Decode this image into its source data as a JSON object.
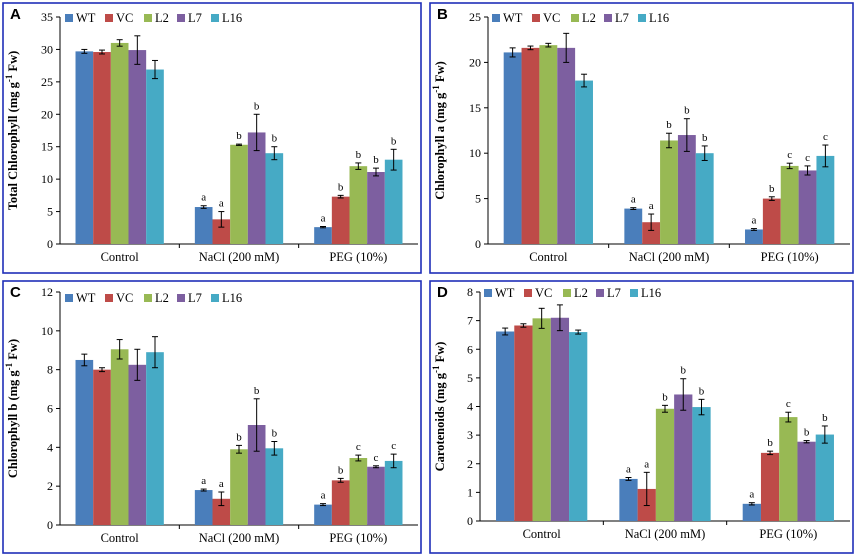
{
  "chart_data": [
    {
      "panel": "A",
      "type": "bar",
      "ylabel": "Total Chlorophyll (mg g-1 Fw)",
      "ylabel_main": "Total Chlorophyll (mg g",
      "ylabel_sup": "-1",
      "ylabel_tail": " Fw)",
      "ylim": [
        0,
        35
      ],
      "yticks": [
        0,
        5,
        10,
        15,
        20,
        25,
        30,
        35
      ],
      "categories": [
        "Control",
        "NaCl (200 mM)",
        "PEG (10%)"
      ],
      "series": [
        {
          "name": "WT",
          "values": [
            29.7,
            5.7,
            2.6
          ],
          "errors": [
            0.3,
            0.2,
            0.1
          ],
          "labels": [
            "",
            "a",
            "a"
          ]
        },
        {
          "name": "VC",
          "values": [
            29.6,
            3.8,
            7.3
          ],
          "errors": [
            0.3,
            1.2,
            0.2
          ],
          "labels": [
            "",
            "a",
            "b"
          ]
        },
        {
          "name": "L2",
          "values": [
            31.0,
            15.3,
            12.0
          ],
          "errors": [
            0.5,
            0.1,
            0.5
          ],
          "labels": [
            "",
            "b",
            "b"
          ]
        },
        {
          "name": "L7",
          "values": [
            29.9,
            17.2,
            11.1
          ],
          "errors": [
            2.2,
            2.8,
            0.6
          ],
          "labels": [
            "",
            "b",
            "b"
          ]
        },
        {
          "name": "L16",
          "values": [
            26.9,
            14.0,
            13.0
          ],
          "errors": [
            1.4,
            1.0,
            1.6
          ],
          "labels": [
            "",
            "b",
            "b"
          ]
        }
      ]
    },
    {
      "panel": "B",
      "type": "bar",
      "ylabel": "Chlorophyll a (mg g-1 Fw)",
      "ylabel_main": "Chlorophyll a (mg g",
      "ylabel_sup": "-1",
      "ylabel_tail": " Fw)",
      "ylim": [
        0,
        25
      ],
      "yticks": [
        0,
        5,
        10,
        15,
        20,
        25
      ],
      "categories": [
        "Control",
        "NaCl (200 mM)",
        "PEG (10%)"
      ],
      "series": [
        {
          "name": "WT",
          "values": [
            21.1,
            3.9,
            1.6
          ],
          "errors": [
            0.5,
            0.1,
            0.1
          ],
          "labels": [
            "",
            "a",
            "a"
          ]
        },
        {
          "name": "VC",
          "values": [
            21.6,
            2.4,
            5.0
          ],
          "errors": [
            0.2,
            0.9,
            0.2
          ],
          "labels": [
            "",
            "a",
            "b"
          ]
        },
        {
          "name": "L2",
          "values": [
            21.9,
            11.4,
            8.6
          ],
          "errors": [
            0.2,
            0.8,
            0.3
          ],
          "labels": [
            "",
            "b",
            "c"
          ]
        },
        {
          "name": "L7",
          "values": [
            21.6,
            12.0,
            8.1
          ],
          "errors": [
            1.6,
            1.8,
            0.5
          ],
          "labels": [
            "",
            "b",
            "c"
          ]
        },
        {
          "name": "L16",
          "values": [
            18.0,
            10.0,
            9.7
          ],
          "errors": [
            0.7,
            0.8,
            1.2
          ],
          "labels": [
            "",
            "b",
            "c"
          ]
        }
      ]
    },
    {
      "panel": "C",
      "type": "bar",
      "ylabel": "Chlorophyll b (mg g-1 Fw)",
      "ylabel_main": "Chlorophyll b (mg g",
      "ylabel_sup": "-1",
      "ylabel_tail": " Fw)",
      "ylim": [
        0,
        12
      ],
      "yticks": [
        0,
        2,
        4,
        6,
        8,
        10,
        12
      ],
      "categories": [
        "Control",
        "NaCl (200 mM)",
        "PEG (10%)"
      ],
      "series": [
        {
          "name": "WT",
          "values": [
            8.5,
            1.8,
            1.05
          ],
          "errors": [
            0.3,
            0.05,
            0.05
          ],
          "labels": [
            "",
            "a",
            "a"
          ]
        },
        {
          "name": "VC",
          "values": [
            8.0,
            1.35,
            2.3
          ],
          "errors": [
            0.1,
            0.35,
            0.1
          ],
          "labels": [
            "",
            "a",
            "b"
          ]
        },
        {
          "name": "L2",
          "values": [
            9.05,
            3.9,
            3.45
          ],
          "errors": [
            0.5,
            0.2,
            0.15
          ],
          "labels": [
            "",
            "b",
            "c"
          ]
        },
        {
          "name": "L7",
          "values": [
            8.25,
            5.15,
            3.0
          ],
          "errors": [
            0.8,
            1.35,
            0.05
          ],
          "labels": [
            "",
            "b",
            "c"
          ]
        },
        {
          "name": "L16",
          "values": [
            8.9,
            3.95,
            3.3
          ],
          "errors": [
            0.8,
            0.35,
            0.35
          ],
          "labels": [
            "",
            "b",
            "c"
          ]
        }
      ]
    },
    {
      "panel": "D",
      "type": "bar",
      "ylabel": "Carotenoids (mg g-1 Fw)",
      "ylabel_main": "Carotenoids (mg g",
      "ylabel_sup": "-1",
      "ylabel_tail": " Fw)",
      "ylim": [
        0,
        8
      ],
      "yticks": [
        0,
        1,
        2,
        3,
        4,
        5,
        6,
        7,
        8
      ],
      "categories": [
        "Control",
        "NaCl (200 mM)",
        "PEG (10%)"
      ],
      "series": [
        {
          "name": "WT",
          "values": [
            6.62,
            1.47,
            0.6
          ],
          "errors": [
            0.12,
            0.05,
            0.04
          ],
          "labels": [
            "",
            "a",
            "a"
          ]
        },
        {
          "name": "VC",
          "values": [
            6.83,
            1.12,
            2.38
          ],
          "errors": [
            0.06,
            0.58,
            0.06
          ],
          "labels": [
            "",
            "a",
            "b"
          ]
        },
        {
          "name": "L2",
          "values": [
            7.08,
            3.92,
            3.63
          ],
          "errors": [
            0.35,
            0.12,
            0.17
          ],
          "labels": [
            "",
            "b",
            "c"
          ]
        },
        {
          "name": "L7",
          "values": [
            7.1,
            4.42,
            2.77
          ],
          "errors": [
            0.45,
            0.55,
            0.04
          ],
          "labels": [
            "",
            "b",
            "b"
          ]
        },
        {
          "name": "L16",
          "values": [
            6.6,
            3.98,
            3.02
          ],
          "errors": [
            0.07,
            0.27,
            0.3
          ],
          "labels": [
            "",
            "b",
            "b"
          ]
        }
      ]
    }
  ],
  "colors": {
    "WT": "#4a7ebb",
    "VC": "#be4b48",
    "L2": "#98b954",
    "L7": "#7d5fa0",
    "L16": "#46aac5",
    "frame": "#1f2fb8"
  }
}
